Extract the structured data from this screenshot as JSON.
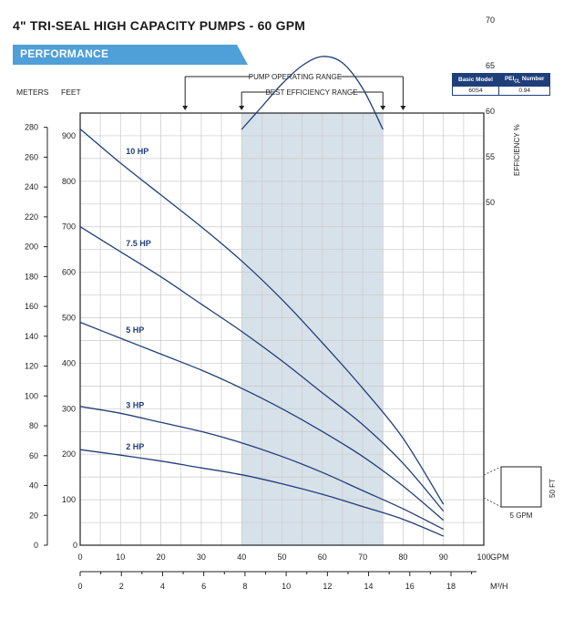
{
  "header": {
    "title": "4\" TRI-SEAL HIGH CAPACITY PUMPS - 60 GPM",
    "section": "PERFORMANCE"
  },
  "model_table": {
    "col1": "Basic Model",
    "col2_main": "PEI",
    "col2_sub": "CL",
    "col2_tail": " Number",
    "model": "60S4",
    "pei": "0.94"
  },
  "colors": {
    "curve": "#1f3f7a",
    "grid": "#c9c9c9",
    "band": "#d7e1ea",
    "banner": "#4f9fd8"
  },
  "chart_data": {
    "type": "line",
    "axes": {
      "y_meters_label": "METERS",
      "y_feet_label": "FEET",
      "y_feet_ticks": [
        100,
        200,
        300,
        400,
        500,
        600,
        700,
        800,
        900
      ],
      "y_feet_range": [
        0,
        950
      ],
      "y_meters_ticks": [
        0,
        20,
        40,
        60,
        80,
        100,
        120,
        140,
        160,
        180,
        200,
        220,
        240,
        260,
        280
      ],
      "x_gpm_ticks": [
        0,
        10,
        20,
        30,
        40,
        50,
        60,
        70,
        80,
        90,
        100
      ],
      "x_gpm_label": "GPM",
      "x_gpm_range": [
        0,
        100
      ],
      "x_m3h_ticks": [
        0,
        2,
        4,
        6,
        8,
        10,
        12,
        14,
        16,
        18
      ],
      "x_m3h_label": "M³/H",
      "eff_ticks": [
        50,
        55,
        60,
        65,
        70
      ],
      "eff_label": "EFFICIENCY %",
      "grid": true
    },
    "ranges": {
      "pump_operating_label": "PUMP OPERATING RANGE",
      "pump_operating": [
        26,
        80
      ],
      "best_efficiency_label": "BEST EFFICIENCY RANGE",
      "best_efficiency": [
        40,
        75
      ]
    },
    "series": [
      {
        "name": "10 HP",
        "x": [
          0,
          10,
          20,
          30,
          40,
          50,
          60,
          70,
          80,
          90
        ],
        "y": [
          915,
          840,
          770,
          700,
          625,
          540,
          445,
          345,
          235,
          90
        ]
      },
      {
        "name": "7.5 HP",
        "x": [
          0,
          10,
          20,
          30,
          40,
          50,
          60,
          70,
          80,
          90
        ],
        "y": [
          700,
          645,
          590,
          530,
          470,
          405,
          335,
          265,
          180,
          75
        ]
      },
      {
        "name": "5 HP",
        "x": [
          0,
          10,
          20,
          30,
          40,
          50,
          60,
          70,
          80,
          90
        ],
        "y": [
          490,
          455,
          420,
          385,
          345,
          300,
          250,
          195,
          130,
          55
        ]
      },
      {
        "name": "3 HP",
        "x": [
          0,
          10,
          20,
          30,
          40,
          50,
          60,
          70,
          80,
          90
        ],
        "y": [
          305,
          290,
          270,
          250,
          225,
          195,
          160,
          120,
          80,
          35
        ]
      },
      {
        "name": "2 HP",
        "x": [
          0,
          10,
          20,
          30,
          40,
          50,
          60,
          70,
          80,
          90
        ],
        "y": [
          210,
          198,
          185,
          170,
          155,
          135,
          112,
          85,
          57,
          20
        ]
      }
    ],
    "efficiency": {
      "x": [
        40,
        45,
        50,
        55,
        60,
        65,
        70,
        75
      ],
      "y": [
        58,
        60.5,
        63,
        65,
        66,
        65.3,
        62.5,
        58
      ]
    },
    "scale_box": {
      "label_h": "5 GPM",
      "label_v": "50 FT"
    }
  }
}
